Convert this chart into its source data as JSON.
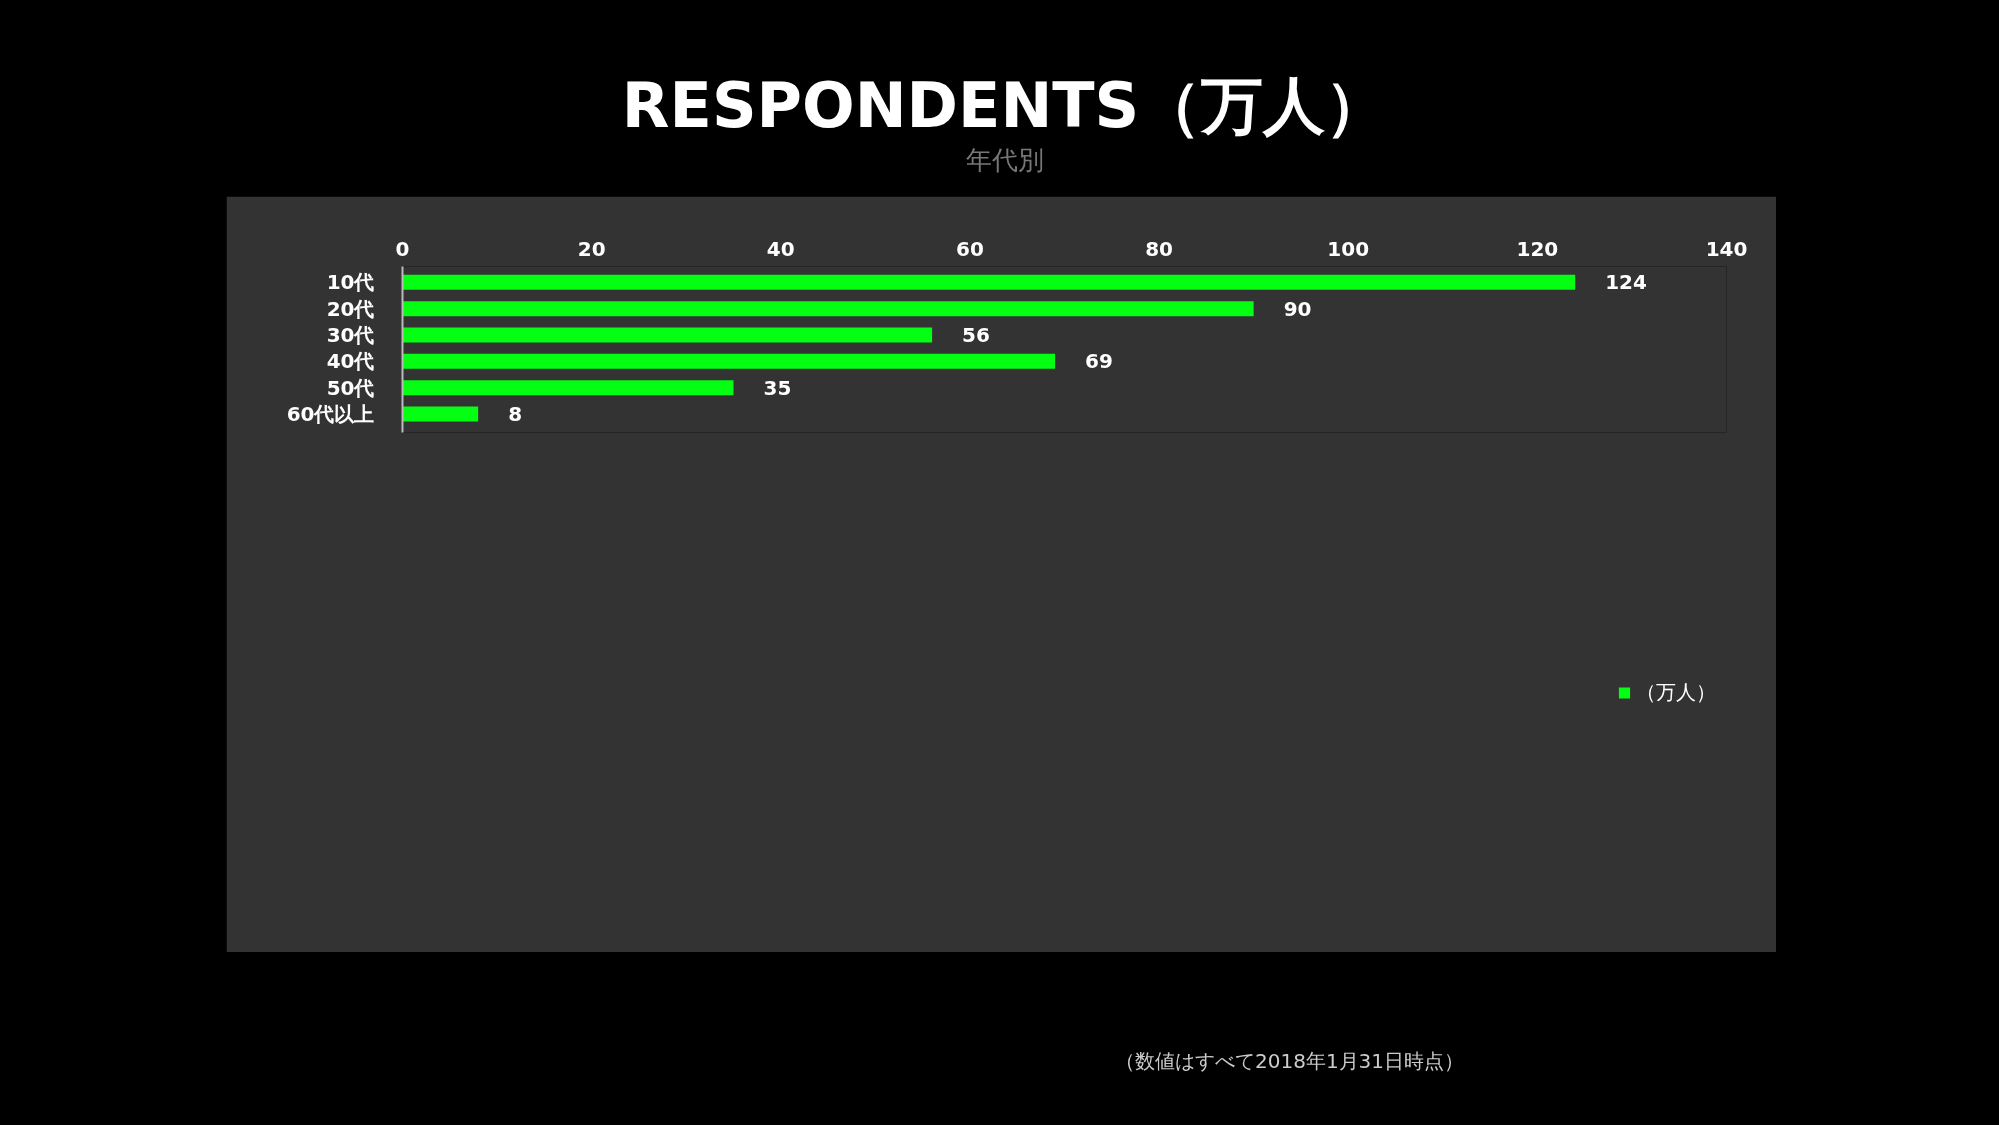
{
  "chart_data": {
    "type": "bar",
    "orientation": "horizontal",
    "title": "RESPONDENTS（万人）",
    "subtitle": "年代別",
    "categories": [
      "10代",
      "20代",
      "30代",
      "40代",
      "50代",
      "60代以上"
    ],
    "series": [
      {
        "name": "（万人）",
        "color": "#05ff12",
        "values": [
          124,
          90,
          56,
          69,
          35,
          8
        ]
      }
    ],
    "xlim": [
      0,
      140
    ],
    "xticks": [
      0,
      20,
      40,
      60,
      80,
      100,
      120,
      140
    ],
    "data_labels": true,
    "legend": "bottom right",
    "grid": false,
    "annotations": [
      "（数値はすべて2018年1月31日時点）"
    ]
  }
}
